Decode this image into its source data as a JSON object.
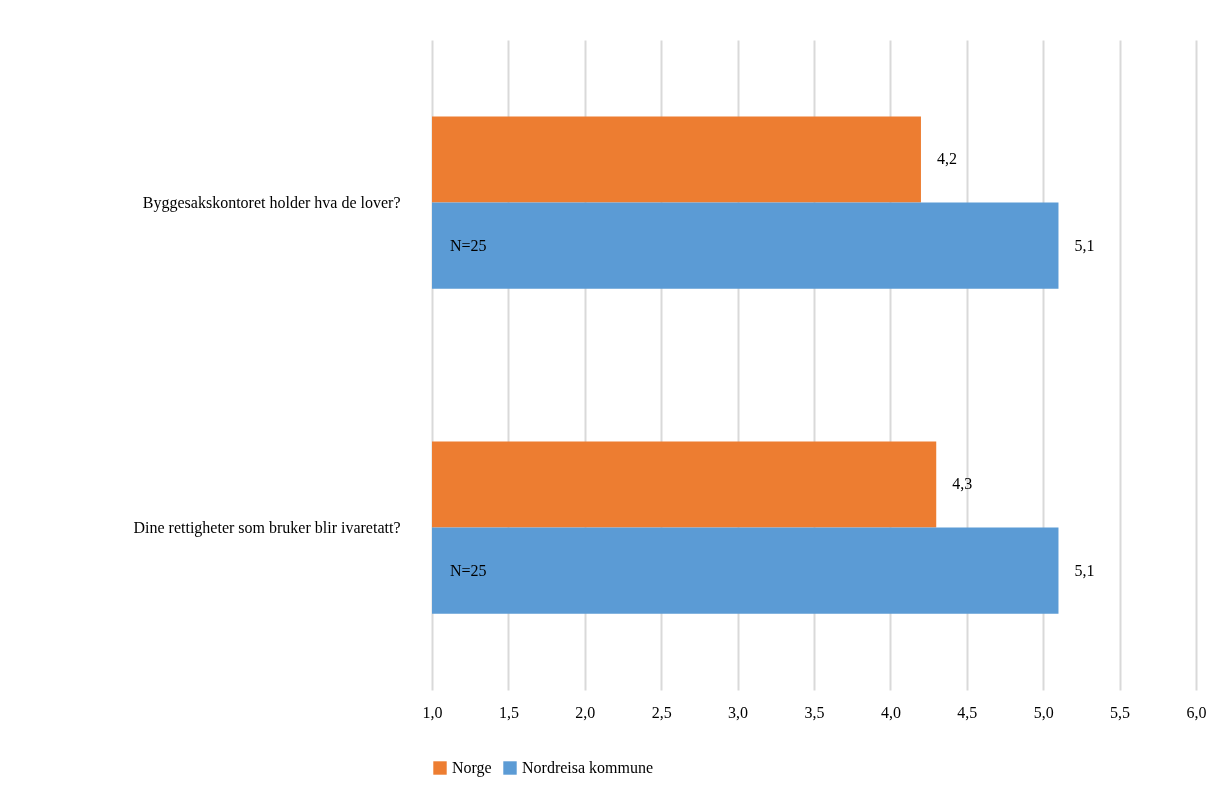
{
  "chart_data": {
    "type": "bar",
    "orientation": "horizontal",
    "categories": [
      "Byggesakskontoret holder hva de lover?",
      "Dine rettigheter som bruker blir ivaretatt?"
    ],
    "series": [
      {
        "name": "Norge",
        "color": "#ed7d31",
        "values": [
          4.2,
          4.3
        ],
        "value_labels": [
          "4,2",
          "4,3"
        ]
      },
      {
        "name": "Nordreisa kommune",
        "color": "#5b9bd5",
        "values": [
          5.1,
          5.1
        ],
        "value_labels": [
          "5,1",
          "5,1"
        ]
      }
    ],
    "xlim": [
      1,
      6
    ],
    "xticks": [
      {
        "value": 1,
        "label": "1,0"
      },
      {
        "value": 1.5,
        "label": "1,5"
      },
      {
        "value": 2,
        "label": "2,0"
      },
      {
        "value": 2.5,
        "label": "2,5"
      },
      {
        "value": 3,
        "label": "3,0"
      },
      {
        "value": 3.5,
        "label": "3,5"
      },
      {
        "value": 4,
        "label": "4,0"
      },
      {
        "value": 4.5,
        "label": "4,5"
      },
      {
        "value": 5,
        "label": "5,0"
      },
      {
        "value": 5.5,
        "label": "5,5"
      },
      {
        "value": 6,
        "label": "6,0"
      }
    ],
    "annotations": [
      {
        "text": "N=25",
        "x": 1,
        "y": "Byggesakskontoret holder hva de lover?"
      },
      {
        "text": "N=25",
        "x": 1,
        "y": "Dine rettigheter som bruker blir ivaretatt?"
      }
    ],
    "grid": "x",
    "legend": "bottom"
  }
}
